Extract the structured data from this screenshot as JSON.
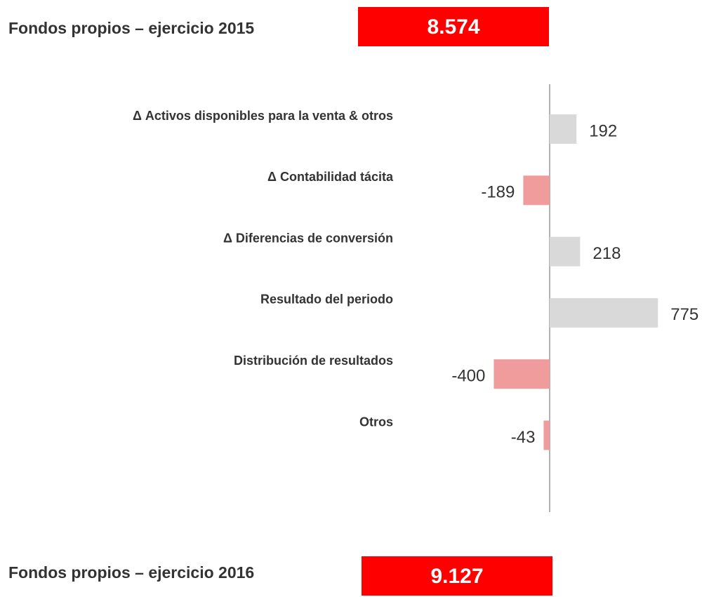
{
  "chart_data": {
    "type": "bar",
    "orientation": "horizontal",
    "opening": {
      "label": "Fondos propios – ejercicio 2015",
      "value": 8574,
      "value_label": "8.574",
      "color": "#ff0000"
    },
    "closing": {
      "label": "Fondos propios – ejercicio 2016",
      "value": 9127,
      "value_label": "9.127",
      "color": "#ff0000"
    },
    "categories": [
      "Δ Activos disponibles para la venta & otros",
      "Δ Contabilidad tácita",
      "Δ Diferencias de conversión",
      "Resultado del periodo",
      "Distribución de resultados",
      "Otros"
    ],
    "values": [
      192,
      -189,
      218,
      775,
      -400,
      -43
    ],
    "colors": [
      "#d9d9d9",
      "#f09c9c",
      "#d9d9d9",
      "#d9d9d9",
      "#f09c9c",
      "#f09c9c"
    ],
    "xlim": [
      -1000,
      1000
    ]
  }
}
